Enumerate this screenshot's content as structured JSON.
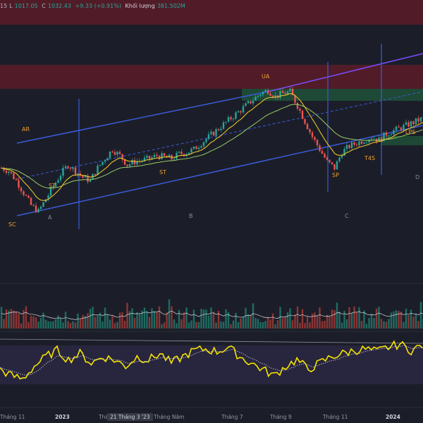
{
  "header": {
    "low_label": "L",
    "low_value": "1017.05",
    "close_label": "C",
    "close_value": "1032.43",
    "change": "+9.33 (+0.91%)",
    "volume_label": "Khối lượng",
    "volume_value": "381.502M",
    "open_fragment": "15"
  },
  "time_axis": {
    "labels": [
      "Tháng 11",
      "2023",
      "Tháng 3",
      "Tháng Năm",
      "Tháng 7",
      "Tháng 9",
      "Tháng 11",
      "2024"
    ],
    "bold": [
      "2023",
      "2024"
    ],
    "crosshair_label": "21 Tháng 3 '23"
  },
  "annotations": {
    "wyckoff_events": [
      "SC",
      "AR",
      "ST",
      "ST",
      "UA",
      "SP",
      "T4S",
      "LPS"
    ],
    "phases": [
      "A",
      "B",
      "C",
      "D"
    ]
  },
  "colors": {
    "background": "#1b1e28",
    "candle_up": "#26a69a",
    "candle_down": "#ef5350",
    "channel": "#3b5bdb",
    "upper_channel": "#7c4dff",
    "ema_yellow": "#e6c229",
    "ema_green": "#9ccc65",
    "supply_zone": "#7a1f2b",
    "demand_zone": "#1e5a3a",
    "event_label": "#f0a030",
    "phase_label": "#8a8e99",
    "rsi_line": "#f5e400"
  },
  "chart_data": {
    "type": "candlestick",
    "note_units": "approximate index level",
    "price_path": [
      [
        0,
        1000
      ],
      [
        3,
        990
      ],
      [
        6,
        960
      ],
      [
        9,
        920
      ],
      [
        12,
        880
      ],
      [
        15,
        860
      ],
      [
        18,
        900
      ],
      [
        21,
        940
      ],
      [
        24,
        980
      ],
      [
        27,
        1010
      ],
      [
        30,
        990
      ],
      [
        33,
        970
      ],
      [
        36,
        960
      ],
      [
        39,
        1000
      ],
      [
        42,
        1030
      ],
      [
        45,
        1060
      ],
      [
        48,
        1040
      ],
      [
        51,
        1010
      ],
      [
        54,
        1020
      ],
      [
        57,
        1025
      ],
      [
        60,
        1030
      ],
      [
        63,
        1040
      ],
      [
        66,
        1035
      ],
      [
        69,
        1030
      ],
      [
        72,
        1045
      ],
      [
        75,
        1050
      ],
      [
        78,
        1060
      ],
      [
        81,
        1080
      ],
      [
        84,
        1100
      ],
      [
        87,
        1120
      ],
      [
        90,
        1140
      ],
      [
        93,
        1160
      ],
      [
        96,
        1180
      ],
      [
        99,
        1200
      ],
      [
        102,
        1220
      ],
      [
        105,
        1240
      ],
      [
        108,
        1250
      ],
      [
        111,
        1230
      ],
      [
        114,
        1240
      ],
      [
        117,
        1245
      ],
      [
        120,
        1200
      ],
      [
        123,
        1150
      ],
      [
        126,
        1100
      ],
      [
        129,
        1060
      ],
      [
        132,
        1020
      ],
      [
        135,
        1000
      ],
      [
        138,
        1050
      ],
      [
        141,
        1070
      ],
      [
        144,
        1080
      ],
      [
        147,
        1090
      ],
      [
        150,
        1100
      ],
      [
        153,
        1090
      ],
      [
        156,
        1110
      ],
      [
        159,
        1120
      ],
      [
        162,
        1130
      ],
      [
        165,
        1140
      ],
      [
        168,
        1150
      ],
      [
        171,
        1160
      ]
    ],
    "rsi_path": [
      [
        0,
        40
      ],
      [
        4,
        30
      ],
      [
        8,
        25
      ],
      [
        12,
        45
      ],
      [
        16,
        60
      ],
      [
        20,
        70
      ],
      [
        24,
        55
      ],
      [
        28,
        65
      ],
      [
        32,
        50
      ],
      [
        36,
        60
      ],
      [
        40,
        55
      ],
      [
        44,
        45
      ],
      [
        48,
        60
      ],
      [
        52,
        55
      ],
      [
        56,
        65
      ],
      [
        60,
        50
      ],
      [
        64,
        60
      ],
      [
        68,
        70
      ],
      [
        72,
        72
      ],
      [
        76,
        68
      ],
      [
        80,
        75
      ],
      [
        84,
        60
      ],
      [
        88,
        50
      ],
      [
        92,
        40
      ],
      [
        96,
        30
      ],
      [
        100,
        45
      ],
      [
        104,
        55
      ],
      [
        108,
        40
      ],
      [
        112,
        50
      ],
      [
        116,
        60
      ],
      [
        120,
        65
      ],
      [
        124,
        70
      ],
      [
        128,
        72
      ],
      [
        132,
        68
      ],
      [
        136,
        75
      ],
      [
        140,
        80
      ],
      [
        144,
        70
      ],
      [
        148,
        78
      ]
    ]
  }
}
